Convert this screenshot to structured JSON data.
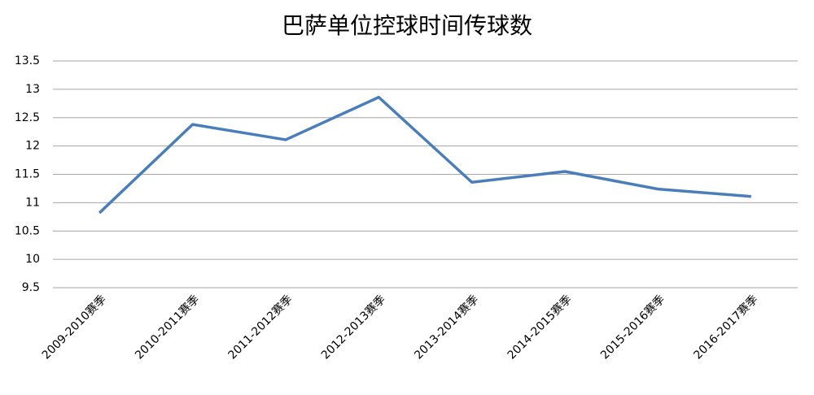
{
  "chart_data": {
    "type": "line",
    "title": "巴萨单位控球时间传球数",
    "categories": [
      "2009-2010赛季",
      "2010-2011赛季",
      "2011-2012赛季",
      "2012-2013赛季",
      "2013-2014赛季",
      "2014-2015赛季",
      "2015-2016赛季",
      "2016-2017赛季"
    ],
    "series": [
      {
        "name": "单位控球时间传球数",
        "color": "#4a7ebb",
        "values": [
          10.82,
          12.38,
          12.11,
          12.86,
          11.36,
          11.55,
          11.24,
          11.11
        ]
      }
    ],
    "ylim": [
      9.5,
      13.5
    ],
    "yticks": [
      9.5,
      10,
      10.5,
      11,
      11.5,
      12,
      12.5,
      13,
      13.5
    ],
    "grid": true,
    "legend": false
  }
}
